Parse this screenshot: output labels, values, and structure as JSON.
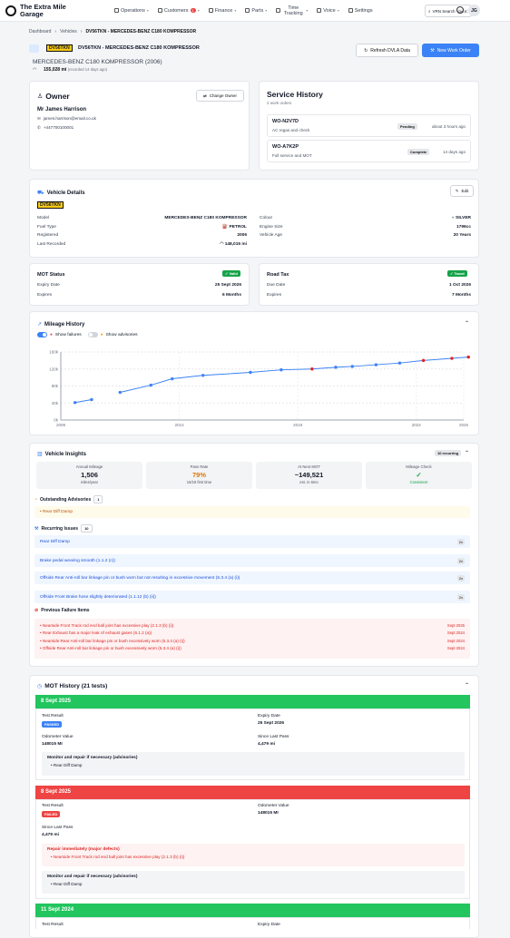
{
  "app": {
    "title": "The Extra Mile Garage",
    "user_initials": "JG"
  },
  "nav": [
    {
      "label": "Operations",
      "icon": "calendar-icon"
    },
    {
      "label": "Customers",
      "icon": "users-icon",
      "badge": "1"
    },
    {
      "label": "Finance",
      "icon": "bank-icon"
    },
    {
      "label": "Parts",
      "icon": "box-icon"
    },
    {
      "label": "Time Tracking",
      "icon": "clock-icon"
    },
    {
      "label": "Voice",
      "icon": "phone-icon"
    },
    {
      "label": "Settings",
      "icon": "gear-icon"
    }
  ],
  "vrn_search": {
    "label": "VRN Search",
    "shortcut": "Ctrl K"
  },
  "breadcrumb": [
    "Dashboard",
    "Vehicles",
    "DV56TKN - MERCEDES-BENZ C180 KOMPRESSOR"
  ],
  "vehicle": {
    "plate": "DV56TKN",
    "title": "DV56TKN - MERCEDES-BENZ C180 KOMPRESSOR",
    "model_line": "MERCEDES-BENZ C180 KOMPRESSOR (2006)",
    "mileage": "155,028 mi",
    "mileage_note": "(recorded 14 days ago)"
  },
  "actions": {
    "refresh": "Refresh DVLA Data",
    "new_work_order": "New Work Order"
  },
  "owner": {
    "heading": "Owner",
    "change_label": "Change Owner",
    "name": "Mr James Harrison",
    "email": "james.harrison@email.co.uk",
    "phone": "+447700100001"
  },
  "service_history": {
    "heading": "Service History",
    "count": "2 work orders",
    "orders": [
      {
        "id": "WO-N2V7D",
        "desc": "AC regas and check",
        "status": "Pending",
        "time": "about 3 hours ago"
      },
      {
        "id": "WO-A7K2P",
        "desc": "Full service and MOT",
        "status": "Complete",
        "time": "14 days ago"
      }
    ]
  },
  "details": {
    "heading": "Vehicle Details",
    "edit_label": "Edit",
    "plate": "DV56TKN",
    "left": [
      {
        "label": "Model",
        "value": "MERCEDES-BENZ C180 KOMPRESSOR"
      },
      {
        "label": "Fuel Type",
        "value": "PETROL"
      },
      {
        "label": "Registered",
        "value": "2006"
      },
      {
        "label": "Last Recorded",
        "value": "148,015 mi"
      }
    ],
    "right": [
      {
        "label": "Colour",
        "value": "SILVER"
      },
      {
        "label": "Engine Size",
        "value": "1796cc"
      },
      {
        "label": "Vehicle Age",
        "value": "20 Years"
      }
    ]
  },
  "mot_status": {
    "heading": "MOT Status",
    "badge": "Valid",
    "rows": [
      {
        "label": "Expiry Date",
        "value": "25 Sept 2026"
      },
      {
        "label": "Expires",
        "value": "6 Months"
      }
    ]
  },
  "road_tax": {
    "heading": "Road Tax",
    "badge": "Taxed",
    "rows": [
      {
        "label": "Due Date",
        "value": "1 Oct 2026"
      },
      {
        "label": "Expires",
        "value": "7 Months"
      }
    ]
  },
  "mileage_history": {
    "heading": "Mileage History",
    "toggle_failures": "Show failures",
    "toggle_advisories": "Show advisories",
    "show_failures": true,
    "show_advisories": false
  },
  "chart_data": {
    "type": "line",
    "x_ticks": [
      "2009",
      "2014",
      "2019",
      "2024",
      "2026"
    ],
    "y_ticks": [
      "0k",
      "40k",
      "80k",
      "120k",
      "160k"
    ],
    "ylim": [
      0,
      160000
    ],
    "xlim": [
      2009,
      2026
    ],
    "points": [
      {
        "x": 2009.6,
        "y": 41000,
        "fail": false
      },
      {
        "x": 2010.3,
        "y": 48000,
        "fail": false
      },
      {
        "x": 2011.5,
        "y": 65000,
        "fail": false
      },
      {
        "x": 2012.8,
        "y": 82000,
        "fail": false
      },
      {
        "x": 2013.7,
        "y": 97000,
        "fail": false
      },
      {
        "x": 2015.0,
        "y": 105000,
        "fail": false
      },
      {
        "x": 2017.0,
        "y": 112000,
        "fail": false
      },
      {
        "x": 2018.3,
        "y": 118000,
        "fail": false
      },
      {
        "x": 2019.6,
        "y": 120000,
        "fail": true
      },
      {
        "x": 2020.6,
        "y": 124000,
        "fail": false
      },
      {
        "x": 2021.3,
        "y": 126000,
        "fail": false
      },
      {
        "x": 2022.3,
        "y": 130000,
        "fail": false
      },
      {
        "x": 2023.3,
        "y": 134000,
        "fail": false
      },
      {
        "x": 2024.3,
        "y": 140000,
        "fail": true
      },
      {
        "x": 2025.5,
        "y": 145000,
        "fail": true
      },
      {
        "x": 2026.2,
        "y": 148000,
        "fail": true
      }
    ]
  },
  "insights": {
    "heading": "Vehicle Insights",
    "recurring_badge": "10 recurring",
    "stats": [
      {
        "label": "Annual Mileage",
        "value": "1,506",
        "sub": "miles/year",
        "color": "#111827"
      },
      {
        "label": "Pass Rate",
        "value": "79%",
        "sub": "15/19 first time",
        "color": "#d97706"
      },
      {
        "label": "At Next MOT",
        "value": "~149,521",
        "sub": "est. in 6mo",
        "color": "#111827"
      },
      {
        "label": "Mileage Check",
        "value": "✓",
        "sub": "Consistent",
        "color": "#16a34a"
      }
    ],
    "advisories_heading": "Outstanding Advisories",
    "advisories_count": "1",
    "advisories": [
      "Rear Diff Damp"
    ],
    "recurring_heading": "Recurring Issues",
    "recurring_count": "10",
    "recurring": [
      {
        "text": "Rear Diff Damp",
        "count": "2x"
      },
      {
        "text": "Brake pedal wearing smooth (1.1.2 (c))",
        "count": "2x"
      },
      {
        "text": "Offside Rear Anti-roll bar linkage pin or bush worn but not resulting in excessive movement (5.3.4 (a) (i))",
        "count": "2x"
      },
      {
        "text": "Offside Front Brake hose slightly deteriorated (1.1.12 (b) (ii))",
        "count": "2x"
      }
    ],
    "failures_heading": "Previous Failure Items",
    "failures": [
      {
        "text": "Nearside Front Track rod end ball joint has excessive play (2.1.3 (b) (i))",
        "date": "Sept 2025"
      },
      {
        "text": "Rear Exhaust has a major leak of exhaust gases (6.1.2 (a))",
        "date": "Sept 2024"
      },
      {
        "text": "Nearside Rear Anti-roll bar linkage pin or bush excessively worn (5.3.4 (a) (i))",
        "date": "Sept 2024"
      },
      {
        "text": "Offside Rear Anti-roll bar linkage pin or bush excessively worn (5.3.4 (a) (i))",
        "date": "Sept 2024"
      }
    ]
  },
  "mot_history": {
    "heading": "MOT History (21 tests)",
    "tests": [
      {
        "date": "8 Sept 2025",
        "result": "PASSED",
        "test_result_label": "Test Result",
        "expiry_label": "Expiry Date",
        "expiry": "25 Sept 2026",
        "odometer_label": "Odometer Value",
        "odometer": "148015 MI",
        "since_label": "Since Last Pass",
        "since": "4,479 mi",
        "advisory_heading": "Monitor and repair if necessary (advisories)",
        "advisories": [
          "Rear Diff Damp"
        ]
      },
      {
        "date": "8 Sept 2025",
        "result": "FAILED",
        "test_result_label": "Test Result",
        "odometer_label": "Odometer Value",
        "odometer": "148015 MI",
        "since_label": "Since Last Pass",
        "since": "4,479 mi",
        "defect_heading": "Repair immediately (major defects)",
        "defects": [
          "Nearside Front Track rod end ball joint has excessive play (2.1.3 (b) (i))"
        ],
        "advisory_heading": "Monitor and repair if necessary (advisories)",
        "advisories": [
          "Rear Diff Damp"
        ]
      },
      {
        "date": "11 Sept 2024",
        "test_result_label": "Test Result",
        "expiry_label": "Expiry Date"
      }
    ]
  }
}
